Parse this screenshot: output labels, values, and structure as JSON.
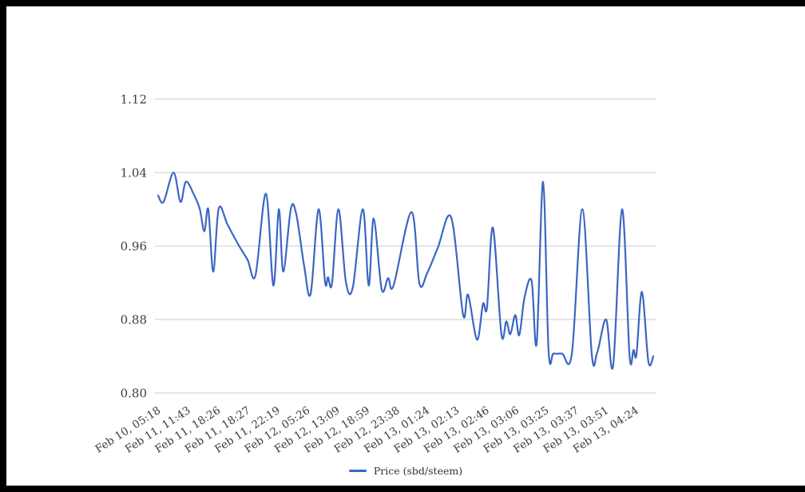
{
  "chart_data": {
    "type": "line",
    "title": "",
    "legend": {
      "label": "Price (sbd/steem)",
      "position": "bottom"
    },
    "series_name": "Price (sbd/steem)",
    "series_color": "#3b66c4",
    "grid_color": "#cccccc",
    "label_color": "#3d3d3d",
    "background_color": "#ffffff",
    "frame_color": "#000000",
    "grid": true,
    "y_axis": {
      "ticks": [
        "1.12",
        "1.04",
        "0.96",
        "0.88",
        "0.80"
      ],
      "min": 0.8,
      "max": 1.12
    },
    "categories": [
      "Feb 10, 05:18",
      "Feb 11, 11:43",
      "Feb 11, 18:26",
      "Feb 11, 18:27",
      "Feb 11, 22:19",
      "Feb 12, 05:26",
      "Feb 12, 13:09",
      "Feb 12, 18:59",
      "Feb 12, 23:38",
      "Feb 13, 01:24",
      "Feb 13, 02:13",
      "Feb 13, 02:46",
      "Feb 13, 03:06",
      "Feb 13, 03:25",
      "Feb 13, 03:37",
      "Feb 13, 03:51",
      "Feb 13, 04:24"
    ],
    "points_note": "each point is [x position as fraction 0-1 along the time axis, price in sbd/steem]",
    "points": [
      [
        0.0,
        1.015
      ],
      [
        0.011,
        1.008
      ],
      [
        0.031,
        1.04
      ],
      [
        0.045,
        1.008
      ],
      [
        0.056,
        1.03
      ],
      [
        0.072,
        1.016
      ],
      [
        0.084,
        1.0
      ],
      [
        0.093,
        0.976
      ],
      [
        0.101,
        1.0
      ],
      [
        0.111,
        0.932
      ],
      [
        0.122,
        1.001
      ],
      [
        0.14,
        0.983
      ],
      [
        0.161,
        0.962
      ],
      [
        0.18,
        0.945
      ],
      [
        0.196,
        0.928
      ],
      [
        0.217,
        1.017
      ],
      [
        0.232,
        0.917
      ],
      [
        0.243,
        1.0
      ],
      [
        0.252,
        0.932
      ],
      [
        0.267,
        1.0
      ],
      [
        0.278,
        0.995
      ],
      [
        0.294,
        0.938
      ],
      [
        0.307,
        0.908
      ],
      [
        0.323,
        1.0
      ],
      [
        0.336,
        0.921
      ],
      [
        0.342,
        0.926
      ],
      [
        0.35,
        0.919
      ],
      [
        0.363,
        1.0
      ],
      [
        0.378,
        0.921
      ],
      [
        0.392,
        0.915
      ],
      [
        0.412,
        1.0
      ],
      [
        0.424,
        0.917
      ],
      [
        0.434,
        0.99
      ],
      [
        0.45,
        0.913
      ],
      [
        0.463,
        0.925
      ],
      [
        0.474,
        0.917
      ],
      [
        0.51,
        0.997
      ],
      [
        0.526,
        0.919
      ],
      [
        0.542,
        0.931
      ],
      [
        0.563,
        0.958
      ],
      [
        0.59,
        0.991
      ],
      [
        0.614,
        0.885
      ],
      [
        0.624,
        0.907
      ],
      [
        0.642,
        0.858
      ],
      [
        0.654,
        0.897
      ],
      [
        0.662,
        0.893
      ],
      [
        0.674,
        0.98
      ],
      [
        0.691,
        0.864
      ],
      [
        0.701,
        0.878
      ],
      [
        0.709,
        0.864
      ],
      [
        0.719,
        0.885
      ],
      [
        0.727,
        0.863
      ],
      [
        0.738,
        0.905
      ],
      [
        0.752,
        0.922
      ],
      [
        0.762,
        0.854
      ],
      [
        0.775,
        1.03
      ],
      [
        0.786,
        0.846
      ],
      [
        0.796,
        0.843
      ],
      [
        0.813,
        0.843
      ],
      [
        0.833,
        0.843
      ],
      [
        0.854,
        1.0
      ],
      [
        0.873,
        0.842
      ],
      [
        0.884,
        0.844
      ],
      [
        0.902,
        0.88
      ],
      [
        0.916,
        0.83
      ],
      [
        0.934,
        1.0
      ],
      [
        0.949,
        0.841
      ],
      [
        0.957,
        0.847
      ],
      [
        0.963,
        0.842
      ],
      [
        0.974,
        0.91
      ],
      [
        0.987,
        0.834
      ],
      [
        0.997,
        0.84
      ]
    ]
  }
}
